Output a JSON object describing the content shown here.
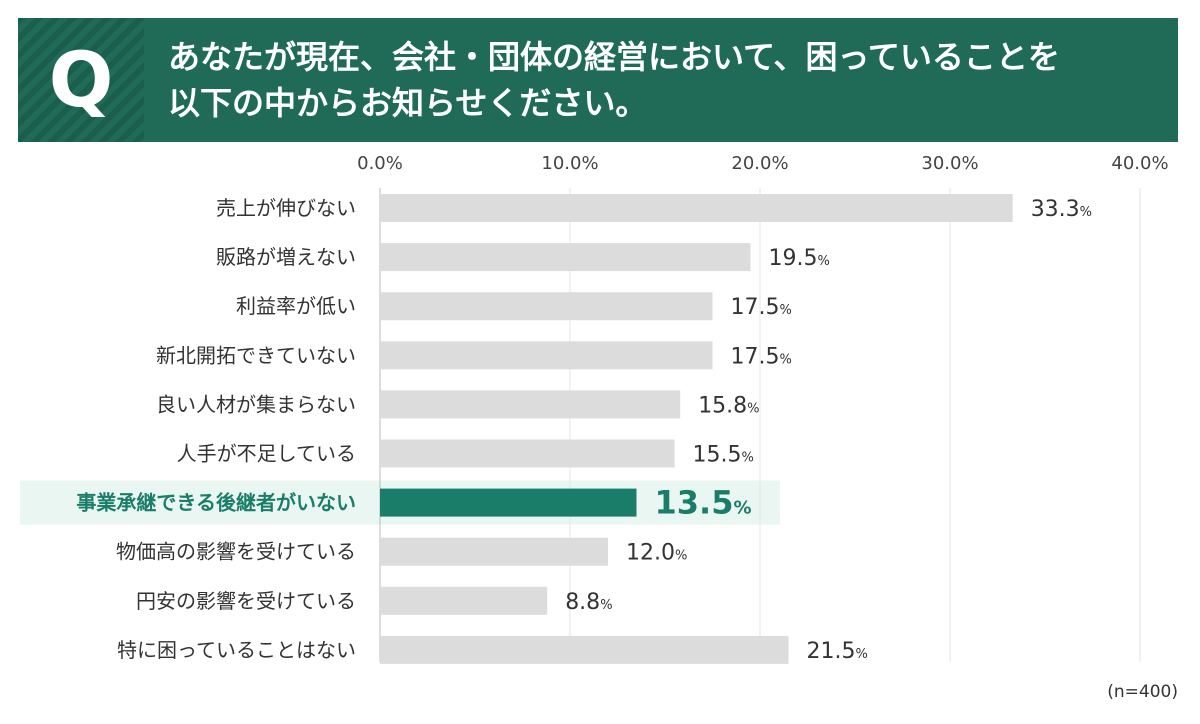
{
  "question": {
    "badge": "Q",
    "line1": "あなたが現在、会社・団体の経営において、困っていることを",
    "line2": "以下の中からお知らせください。"
  },
  "note": "(n=400)",
  "colors": {
    "header_bg": "#1f6b57",
    "bar_default": "#dcdcdc",
    "bar_highlight": "#1a7d69",
    "highlight_bg": "#eaf6f1",
    "highlight_text": "#1a7d69"
  },
  "chart_data": {
    "type": "bar",
    "orientation": "horizontal",
    "categories": [
      "売上が伸びない",
      "販路が増えない",
      "利益率が低い",
      "新北開拓できていない",
      "良い人材が集まらない",
      "人手が不足している",
      "事業承継できる後継者がいない",
      "物価高の影響を受けている",
      "円安の影響を受けている",
      "特に困っていることはない"
    ],
    "values": [
      33.3,
      19.5,
      17.5,
      17.5,
      15.8,
      15.5,
      13.5,
      12.0,
      8.8,
      21.5
    ],
    "value_labels": [
      "33.3",
      "19.5",
      "17.5",
      "17.5",
      "15.8",
      "15.5",
      "13.5",
      "12.0",
      "8.8",
      "21.5"
    ],
    "value_suffix": "%",
    "xlim": [
      0,
      40
    ],
    "ticks": [
      "0.0%",
      "10.0%",
      "20.0%",
      "30.0%",
      "40.0%"
    ],
    "tick_values": [
      0,
      10,
      20,
      30,
      40
    ],
    "highlight_index": 6,
    "grid": true
  }
}
